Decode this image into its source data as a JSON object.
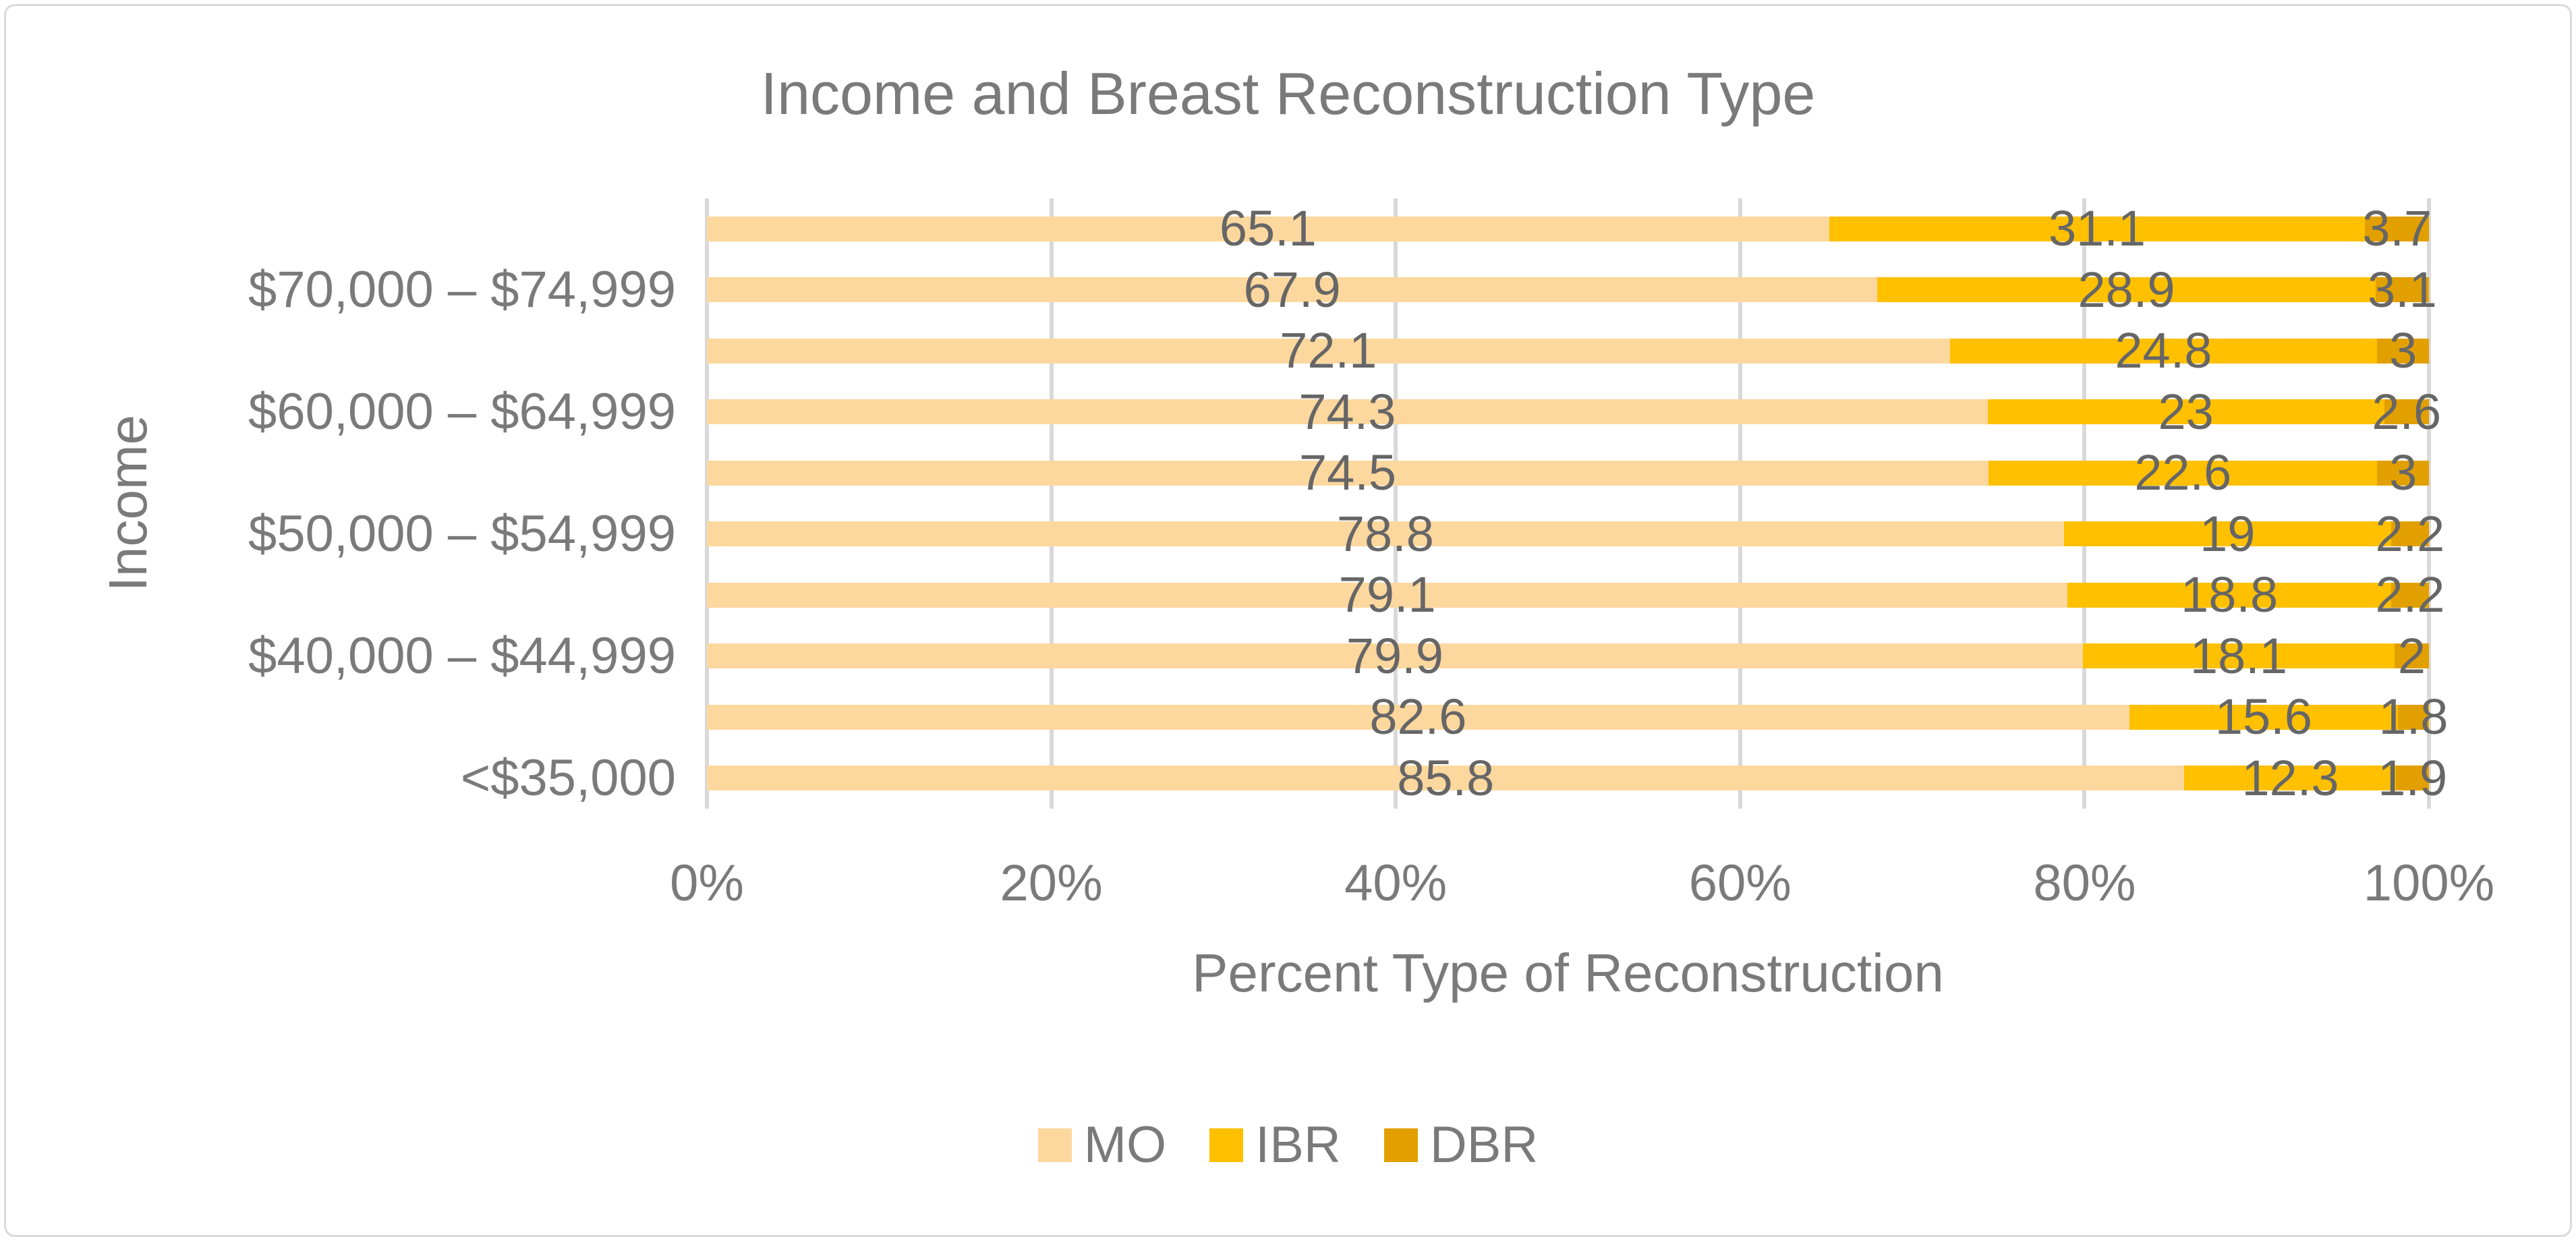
{
  "chart_data": {
    "type": "bar",
    "orientation": "horizontal",
    "stacked": true,
    "percent_stacked": true,
    "title": "Income and Breast Reconstruction Type",
    "xlabel": "Percent Type of Reconstruction",
    "ylabel": "Income",
    "xlim": [
      0,
      100
    ],
    "x_ticks": [
      "0%",
      "20%",
      "40%",
      "60%",
      "80%",
      "100%"
    ],
    "grid": true,
    "legend_position": "bottom",
    "categories_top_to_bottom": [
      "",
      "$70,000 – $74,999",
      "",
      "$60,000 – $64,999",
      "",
      "$50,000 – $54,999",
      "",
      "$40,000 – $44,999",
      "",
      "<$35,000"
    ],
    "series": [
      {
        "name": "MO",
        "color": "#FCD79E",
        "values": [
          65.1,
          67.9,
          72.1,
          74.3,
          74.5,
          78.8,
          79.1,
          79.9,
          82.6,
          85.8
        ]
      },
      {
        "name": "IBR",
        "color": "#FFC000",
        "values": [
          31.1,
          28.9,
          24.8,
          23,
          22.6,
          19,
          18.8,
          18.1,
          15.6,
          12.3
        ]
      },
      {
        "name": "DBR",
        "color": "#E2A000",
        "values": [
          3.7,
          3.1,
          3,
          2.6,
          3,
          2.2,
          2.2,
          2,
          1.8,
          1.9
        ]
      }
    ],
    "colors": {
      "gridline": "#D9D9D9",
      "axis_line": "#D9D9D9",
      "axis_text": "#7A7A7A",
      "data_label_text": "#666666",
      "frame_border": "#D9D9D9"
    }
  }
}
